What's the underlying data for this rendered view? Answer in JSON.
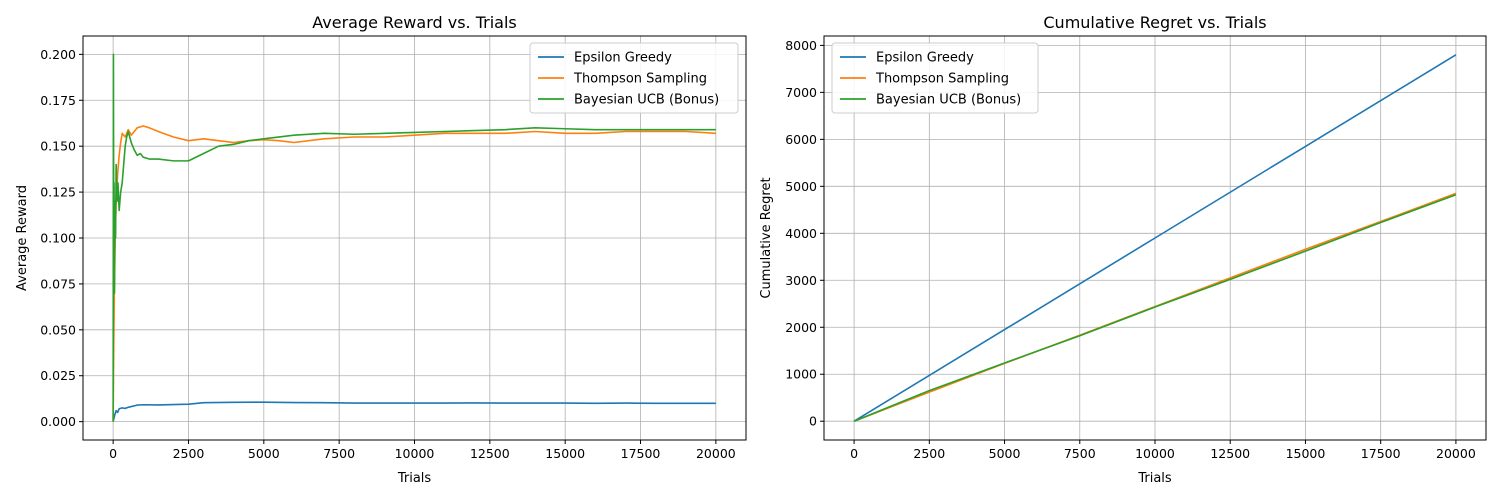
{
  "colors": {
    "epsilon": "#1f77b4",
    "thompson": "#ff7f0e",
    "bayes": "#2ca02c",
    "grid": "#b0b0b0",
    "axis": "#000000"
  },
  "chart_data": [
    {
      "type": "line",
      "title": "Average Reward vs. Trials",
      "xlabel": "Trials",
      "ylabel": "Average Reward",
      "xlim": [
        -1000,
        21000
      ],
      "ylim": [
        -0.01,
        0.21
      ],
      "xticks": [
        0,
        2500,
        5000,
        7500,
        10000,
        12500,
        15000,
        17500,
        20000
      ],
      "yticks": [
        0.0,
        0.025,
        0.05,
        0.075,
        0.1,
        0.125,
        0.15,
        0.175,
        0.2
      ],
      "ytick_labels": [
        "0.000",
        "0.025",
        "0.050",
        "0.075",
        "0.100",
        "0.125",
        "0.150",
        "0.175",
        "0.200"
      ],
      "grid": true,
      "legend": "top-right",
      "series": [
        {
          "name": "Epsilon Greedy",
          "color": "epsilon",
          "x": [
            0,
            30,
            60,
            100,
            150,
            200,
            300,
            400,
            500,
            600,
            800,
            1000,
            1500,
            2000,
            2500,
            3000,
            4000,
            5000,
            6000,
            7000,
            8000,
            9000,
            10000,
            11000,
            12000,
            13000,
            14000,
            15000,
            16000,
            17000,
            18000,
            19000,
            20000
          ],
          "y": [
            0.0,
            0.002,
            0.004,
            0.006,
            0.005,
            0.007,
            0.0075,
            0.0072,
            0.0078,
            0.0082,
            0.009,
            0.0092,
            0.0091,
            0.0093,
            0.0095,
            0.0103,
            0.0105,
            0.0106,
            0.0104,
            0.0103,
            0.0101,
            0.0101,
            0.0101,
            0.0101,
            0.0102,
            0.0101,
            0.0101,
            0.0101,
            0.01,
            0.0101,
            0.01,
            0.01,
            0.01
          ]
        },
        {
          "name": "Thompson Sampling",
          "color": "thompson",
          "x": [
            0,
            20,
            40,
            70,
            100,
            150,
            200,
            250,
            300,
            400,
            500,
            600,
            700,
            800,
            1000,
            1200,
            1500,
            2000,
            2500,
            3000,
            3500,
            4000,
            4500,
            5000,
            5500,
            6000,
            7000,
            8000,
            9000,
            10000,
            11000,
            12000,
            13000,
            14000,
            15000,
            16000,
            17000,
            18000,
            19000,
            20000
          ],
          "y": [
            0.0,
            0.04,
            0.07,
            0.1,
            0.12,
            0.135,
            0.145,
            0.152,
            0.157,
            0.155,
            0.159,
            0.156,
            0.158,
            0.16,
            0.161,
            0.16,
            0.158,
            0.155,
            0.153,
            0.154,
            0.153,
            0.152,
            0.153,
            0.1535,
            0.153,
            0.152,
            0.154,
            0.155,
            0.155,
            0.156,
            0.157,
            0.157,
            0.157,
            0.158,
            0.157,
            0.157,
            0.158,
            0.158,
            0.158,
            0.157
          ]
        },
        {
          "name": "Bayesian UCB (Bonus)",
          "color": "bayes",
          "x": [
            0,
            10,
            20,
            30,
            45,
            60,
            80,
            100,
            130,
            160,
            200,
            250,
            300,
            350,
            400,
            450,
            500,
            550,
            600,
            700,
            800,
            900,
            1000,
            1200,
            1500,
            2000,
            2500,
            3000,
            3500,
            4000,
            4500,
            5000,
            6000,
            7000,
            8000,
            9000,
            10000,
            11000,
            12000,
            13000,
            14000,
            15000,
            16000,
            17000,
            18000,
            19000,
            20000
          ],
          "y": [
            0.0,
            0.2,
            0.09,
            0.13,
            0.07,
            0.12,
            0.1,
            0.14,
            0.12,
            0.13,
            0.115,
            0.125,
            0.13,
            0.14,
            0.15,
            0.155,
            0.158,
            0.155,
            0.152,
            0.148,
            0.145,
            0.146,
            0.144,
            0.143,
            0.143,
            0.142,
            0.142,
            0.146,
            0.15,
            0.151,
            0.153,
            0.154,
            0.156,
            0.157,
            0.1565,
            0.157,
            0.1575,
            0.158,
            0.1585,
            0.159,
            0.16,
            0.1595,
            0.159,
            0.159,
            0.159,
            0.159,
            0.159
          ]
        }
      ]
    },
    {
      "type": "line",
      "title": "Cumulative Regret vs. Trials",
      "xlabel": "Trials",
      "ylabel": "Cumulative Regret",
      "xlim": [
        -1000,
        21000
      ],
      "ylim": [
        -400,
        8200
      ],
      "xticks": [
        0,
        2500,
        5000,
        7500,
        10000,
        12500,
        15000,
        17500,
        20000
      ],
      "yticks": [
        0,
        1000,
        2000,
        3000,
        4000,
        5000,
        6000,
        7000,
        8000
      ],
      "ytick_labels": [
        "0",
        "1000",
        "2000",
        "3000",
        "4000",
        "5000",
        "6000",
        "7000",
        "8000"
      ],
      "grid": true,
      "legend": "top-left",
      "series": [
        {
          "name": "Epsilon Greedy",
          "color": "epsilon",
          "x": [
            0,
            5000,
            10000,
            15000,
            20000
          ],
          "y": [
            0,
            1950,
            3900,
            5850,
            7800
          ]
        },
        {
          "name": "Thompson Sampling",
          "color": "thompson",
          "x": [
            0,
            2500,
            5000,
            7500,
            10000,
            12500,
            15000,
            17500,
            20000
          ],
          "y": [
            0,
            620,
            1230,
            1830,
            2440,
            3050,
            3660,
            4250,
            4850
          ]
        },
        {
          "name": "Bayesian UCB (Bonus)",
          "color": "bayes",
          "x": [
            0,
            2500,
            5000,
            7500,
            10000,
            12500,
            15000,
            17500,
            20000
          ],
          "y": [
            0,
            650,
            1240,
            1820,
            2430,
            3020,
            3620,
            4230,
            4820
          ]
        }
      ]
    }
  ]
}
